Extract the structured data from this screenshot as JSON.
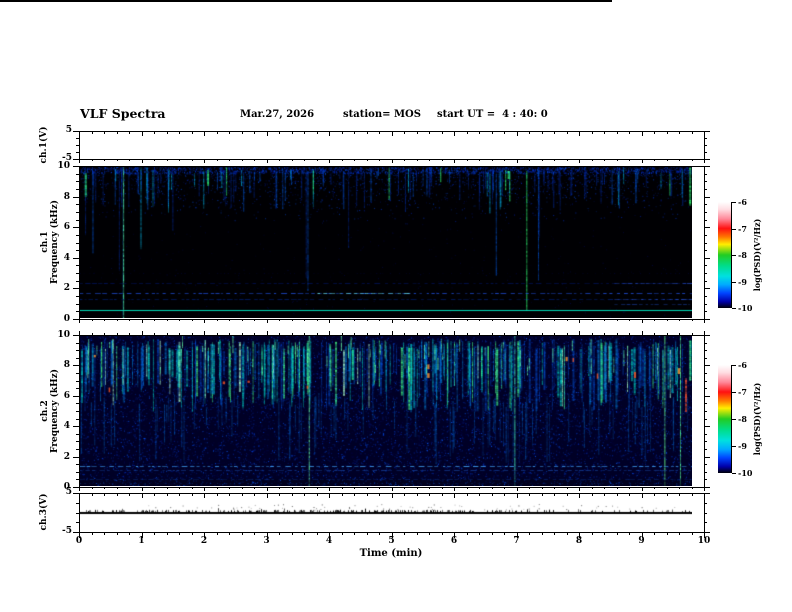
{
  "header": {
    "title": "VLF Spectra",
    "date": "Mar.27, 2026",
    "station": "station= MOS",
    "start_ut": "start UT =  4 : 40: 0"
  },
  "chart_data": {
    "type": "heatmap",
    "description": "Stacked VLF monitor: ch.1(V) voltage trace, ch.1 spectrogram 0-10 kHz, ch.2 spectrogram 0-10 kHz, ch.3(V) voltage trace, versus time 0-10 min",
    "x_axis": {
      "label": "Time (min)",
      "min": 0,
      "max": 10,
      "major_step": 1,
      "minor_step": 0.2,
      "tick_labels": [
        "0",
        "1",
        "2",
        "3",
        "4",
        "5",
        "6",
        "7",
        "8",
        "9",
        "10"
      ],
      "data_end_min": 9.8
    },
    "panels": [
      {
        "id": "ch1_voltage",
        "kind": "waveform",
        "ylabel": "ch.1(V)",
        "ytick_labels": [
          "5",
          "-5"
        ],
        "yticks": [
          5,
          -5
        ],
        "yrange": [
          -5,
          5
        ],
        "minor_yticks": [
          2.5,
          0,
          -2.5
        ],
        "signal": "flat",
        "baseline_value": 0,
        "seed": 7
      },
      {
        "id": "ch1_spectrogram",
        "kind": "spectrogram",
        "ylabel_lines": [
          "ch.1",
          "Frequency (kHz)"
        ],
        "ytick_labels": [
          "0",
          "2",
          "4",
          "6",
          "8",
          "10"
        ],
        "yrange": [
          0,
          10
        ],
        "background": "#000003",
        "seed": 1234,
        "speckle": {
          "top_edge": 1200,
          "band": 2600,
          "low": 320
        },
        "streaks": {
          "count": 158,
          "long_fraction": 0.12
        },
        "full_streaks": [
          {
            "t": 0.69,
            "color": "#55ffbb"
          }
        ],
        "horizontal_lines": [
          {
            "f": 0.55,
            "color": "#00e6c0",
            "alpha": 0.95,
            "style": "solid"
          },
          {
            "f": 1.25,
            "color": "#0033bb",
            "alpha": 0.5,
            "style": "dash"
          },
          {
            "f": 1.65,
            "color": "#2255ee",
            "alpha": 0.8,
            "style": "dash"
          },
          {
            "f": 2.35,
            "color": "#0022aa",
            "alpha": 0.45,
            "style": "dash"
          },
          {
            "f": 3.0,
            "color": "#001188",
            "alpha": 0.3,
            "style": "dots"
          }
        ],
        "line_segments": [
          {
            "f": 1.65,
            "t0": 3.8,
            "t1": 5.3,
            "color": "#66ddee",
            "alpha": 0.9
          },
          {
            "f": 1.25,
            "t0": 8.55,
            "t1": 9.8,
            "color": "#3366ff",
            "alpha": 0.6
          },
          {
            "f": 2.35,
            "t0": 8.55,
            "t1": 9.8,
            "color": "#3366ff",
            "alpha": 0.55
          },
          {
            "f": 0.9,
            "t0": 8.55,
            "t1": 9.8,
            "color": "#2255dd",
            "alpha": 0.5
          }
        ]
      },
      {
        "id": "ch2_spectrogram",
        "kind": "spectrogram",
        "ylabel_lines": [
          "ch.2",
          "Frequency (kHz)"
        ],
        "ytick_labels": [
          "0",
          "2",
          "4",
          "6",
          "8",
          "10"
        ],
        "yrange": [
          0,
          10
        ],
        "background": "#000026",
        "seed": 5678,
        "noise_dots": 14000,
        "band": {
          "strokes": 330,
          "cores": 55,
          "red_pixels": 12,
          "tails": 90,
          "f_top": [
            9.0,
            9.8
          ],
          "f_bottom": [
            5.0,
            7.6
          ]
        },
        "full_streaks": [
          {
            "t": 3.66,
            "color": "#66ffaa"
          },
          {
            "t": 6.95,
            "color": "#44eebb"
          },
          {
            "t": 9.35,
            "color": "#66ff88"
          },
          {
            "t": 9.6,
            "color": "#55ff99"
          }
        ],
        "partial_streaks": [
          {
            "t": 9.68,
            "f0": 5.0,
            "f1": 7.2,
            "color": "#ff5533"
          }
        ],
        "horizontal_lines": [
          {
            "f": 1.3,
            "color": "#44aaff",
            "alpha": 0.85,
            "style": "dash"
          },
          {
            "f": 1.05,
            "color": "#2266dd",
            "alpha": 0.5,
            "style": "dash"
          },
          {
            "f": 0.5,
            "color": "#1144aa",
            "alpha": 0.4,
            "style": "dash"
          },
          {
            "f": 0.2,
            "color": "#2266cc",
            "alpha": 0.4,
            "style": "dots"
          }
        ]
      },
      {
        "id": "ch3_voltage",
        "kind": "waveform",
        "ylabel": "ch.3(V)",
        "ytick_labels": [
          "5",
          "-5"
        ],
        "yticks": [
          5,
          -5
        ],
        "yrange": [
          -5,
          5
        ],
        "minor_yticks": [
          2.5,
          0,
          -2.5
        ],
        "signal": "noisy",
        "baseline_value": 0,
        "seed": 999
      }
    ],
    "colorbars": [
      {
        "label": "log(PSD)(V²/Hz)",
        "tick_labels": [
          "-6",
          "-7",
          "-8",
          "-9",
          "-10"
        ],
        "range": [
          -6,
          -10
        ],
        "gradient": [
          [
            0,
            "#ffffff"
          ],
          [
            0.07,
            "#ffdde2"
          ],
          [
            0.16,
            "#ff8899"
          ],
          [
            0.25,
            "#ff1111"
          ],
          [
            0.33,
            "#ff7700"
          ],
          [
            0.4,
            "#ffee00"
          ],
          [
            0.5,
            "#22cc22"
          ],
          [
            0.6,
            "#00dd88"
          ],
          [
            0.7,
            "#00e0e0"
          ],
          [
            0.78,
            "#00aaff"
          ],
          [
            0.86,
            "#0044ff"
          ],
          [
            0.94,
            "#0000aa"
          ],
          [
            1,
            "#000008"
          ]
        ]
      },
      {
        "label": "log(PSD)(V²/Hz)",
        "tick_labels": [
          "-6",
          "-7",
          "-8",
          "-9",
          "-10"
        ],
        "range": [
          -6,
          -10
        ],
        "gradient": [
          [
            0,
            "#ffffff"
          ],
          [
            0.07,
            "#ffdde2"
          ],
          [
            0.16,
            "#ff8899"
          ],
          [
            0.25,
            "#ff1111"
          ],
          [
            0.33,
            "#ff7700"
          ],
          [
            0.4,
            "#ffee00"
          ],
          [
            0.5,
            "#22cc22"
          ],
          [
            0.6,
            "#00dd88"
          ],
          [
            0.7,
            "#00e0e0"
          ],
          [
            0.78,
            "#00aaff"
          ],
          [
            0.86,
            "#0044ff"
          ],
          [
            0.94,
            "#0000aa"
          ],
          [
            1,
            "#000008"
          ]
        ]
      }
    ]
  }
}
